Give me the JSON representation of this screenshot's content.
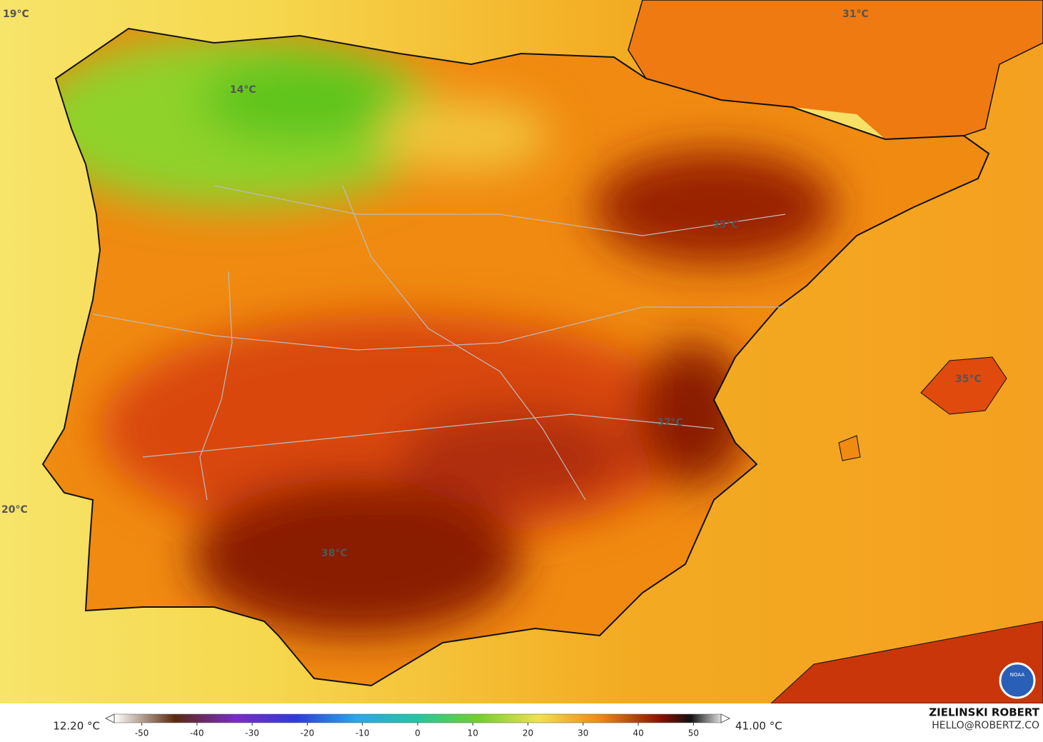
{
  "map_labels": [
    "19°C",
    "14°C",
    "31°C",
    "35°C",
    "35°C",
    "37°C",
    "38°C",
    "20°C"
  ],
  "colorbar": {
    "min_label": "12.20 °C",
    "max_label": "41.00 °C",
    "range": [
      -55,
      55
    ],
    "ticks": [
      -50,
      -40,
      -30,
      -20,
      -10,
      0,
      10,
      20,
      30,
      40,
      50
    ]
  },
  "credit": {
    "author": "ZIELINSKI ROBERT",
    "email": "HELLO@ROBERTZ.CO",
    "logo": "NOAA"
  }
}
